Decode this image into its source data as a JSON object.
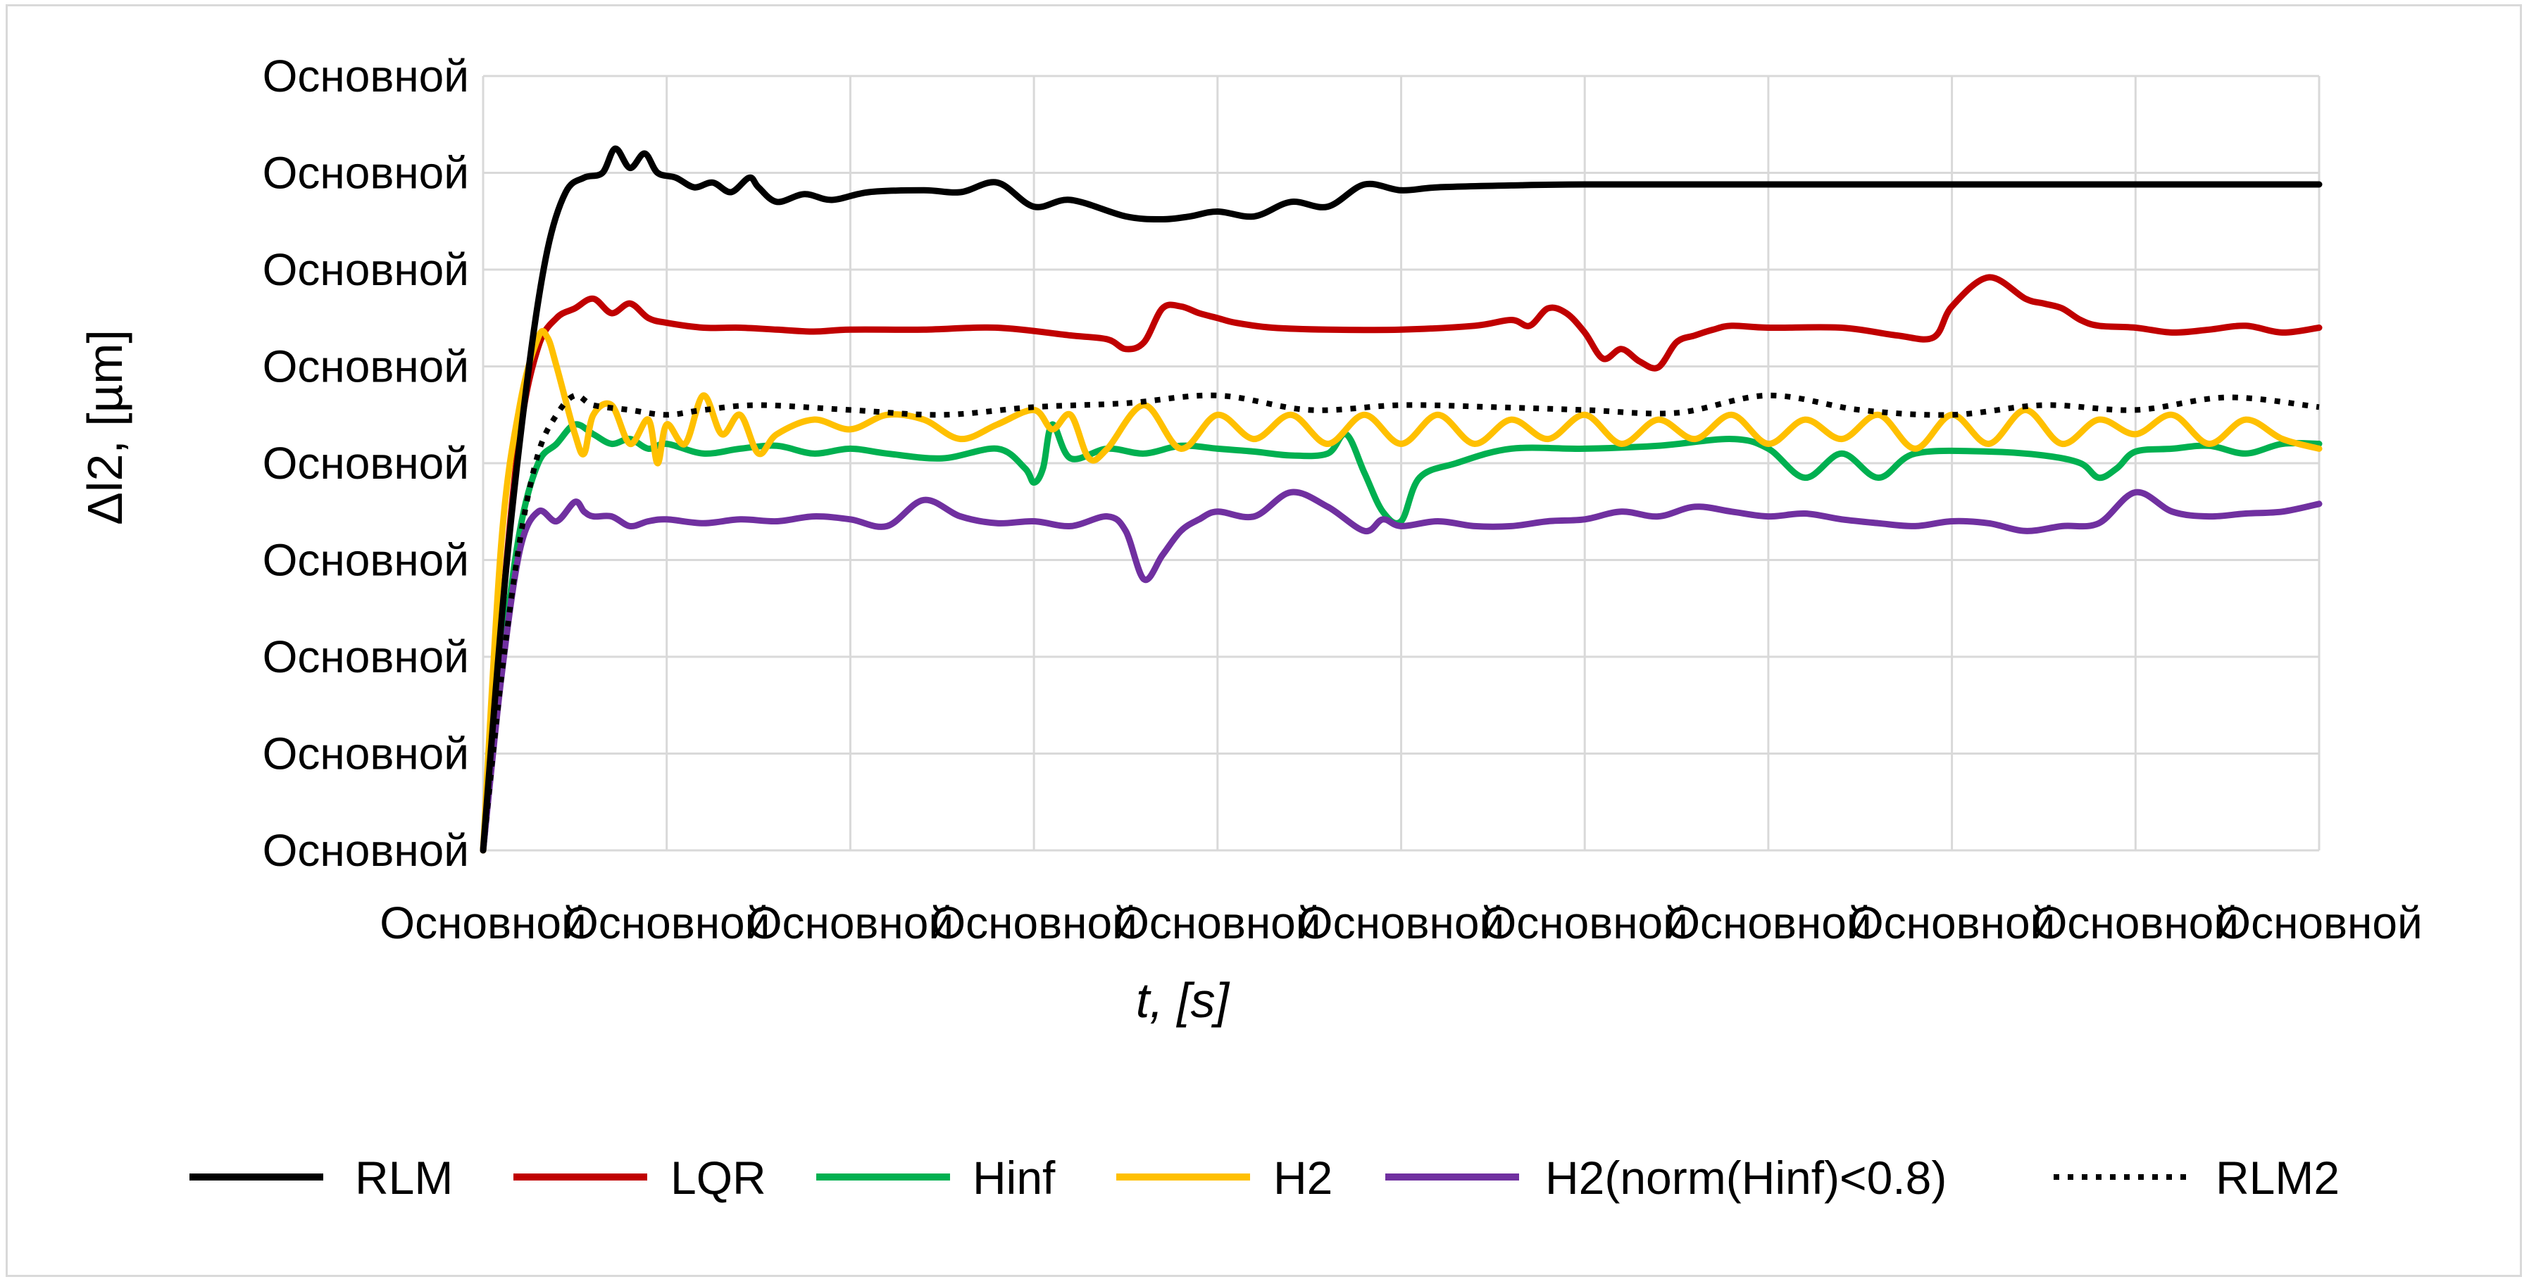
{
  "chart_data": {
    "type": "line",
    "title": "",
    "xlabel": "t, [s]",
    "ylabel": "Δl2, [µm]",
    "x_tick_labels": [
      "Основной",
      "Основной",
      "Основной",
      "Основной",
      "Основной",
      "Основной",
      "Основной",
      "Основной",
      "Основной",
      "Основной",
      "Основной"
    ],
    "y_tick_labels": [
      "Основной",
      "Основной",
      "Основной",
      "Основной",
      "Основной",
      "Основной",
      "Основной",
      "Основной",
      "Основной"
    ],
    "xlim": [
      0,
      10
    ],
    "ylim": [
      0,
      8
    ],
    "grid": true,
    "legend_position": "bottom",
    "series": [
      {
        "name": "RLM",
        "color": "#000000",
        "dash": "solid",
        "x": [
          0,
          0.12,
          0.25,
          0.35,
          0.45,
          0.55,
          0.65,
          0.72,
          0.8,
          0.88,
          0.95,
          1.05,
          1.15,
          1.25,
          1.35,
          1.45,
          1.5,
          1.6,
          1.75,
          1.9,
          2.1,
          2.4,
          2.6,
          2.8,
          3.0,
          3.2,
          3.5,
          3.7,
          3.85,
          4.0,
          4.2,
          4.4,
          4.6,
          4.8,
          5.0,
          5.2,
          5.6,
          6.0,
          7.0,
          8.0,
          9.0,
          10.0
        ],
        "y": [
          0,
          2.8,
          5.0,
          6.2,
          6.8,
          6.95,
          7.0,
          7.25,
          7.05,
          7.2,
          7.0,
          6.95,
          6.85,
          6.9,
          6.8,
          6.95,
          6.85,
          6.7,
          6.78,
          6.72,
          6.8,
          6.82,
          6.8,
          6.9,
          6.65,
          6.72,
          6.55,
          6.52,
          6.55,
          6.6,
          6.55,
          6.7,
          6.65,
          6.88,
          6.82,
          6.85,
          6.87,
          6.88,
          6.88,
          6.88,
          6.88,
          6.88
        ]
      },
      {
        "name": "LQR",
        "color": "#c00000",
        "dash": "solid",
        "x": [
          0,
          0.1,
          0.2,
          0.3,
          0.4,
          0.5,
          0.6,
          0.7,
          0.8,
          0.9,
          1.0,
          1.2,
          1.4,
          1.6,
          1.8,
          2.0,
          2.4,
          2.8,
          3.2,
          3.4,
          3.5,
          3.6,
          3.7,
          3.8,
          3.9,
          4.0,
          4.1,
          4.3,
          4.6,
          5.0,
          5.4,
          5.6,
          5.7,
          5.8,
          5.9,
          6.0,
          6.1,
          6.2,
          6.3,
          6.4,
          6.5,
          6.6,
          6.7,
          6.8,
          7.0,
          7.4,
          7.7,
          7.9,
          8.0,
          8.2,
          8.4,
          8.5,
          8.6,
          8.7,
          8.8,
          9.0,
          9.2,
          9.4,
          9.6,
          9.8,
          10.0
        ],
        "y": [
          0,
          2.4,
          4.3,
          5.2,
          5.5,
          5.6,
          5.7,
          5.55,
          5.65,
          5.5,
          5.45,
          5.4,
          5.4,
          5.38,
          5.36,
          5.38,
          5.38,
          5.4,
          5.32,
          5.28,
          5.18,
          5.25,
          5.6,
          5.62,
          5.55,
          5.5,
          5.45,
          5.4,
          5.38,
          5.38,
          5.42,
          5.48,
          5.42,
          5.6,
          5.55,
          5.35,
          5.08,
          5.18,
          5.05,
          4.99,
          5.25,
          5.32,
          5.38,
          5.42,
          5.4,
          5.4,
          5.32,
          5.3,
          5.62,
          5.92,
          5.7,
          5.65,
          5.6,
          5.48,
          5.42,
          5.4,
          5.35,
          5.38,
          5.42,
          5.35,
          5.4
        ]
      },
      {
        "name": "Hinf",
        "color": "#00b050",
        "dash": "solid",
        "x": [
          0,
          0.1,
          0.2,
          0.3,
          0.4,
          0.5,
          0.6,
          0.7,
          0.8,
          0.9,
          1.0,
          1.2,
          1.4,
          1.6,
          1.8,
          2.0,
          2.2,
          2.5,
          2.8,
          2.95,
          3.0,
          3.05,
          3.1,
          3.2,
          3.4,
          3.6,
          3.8,
          4.0,
          4.2,
          4.4,
          4.6,
          4.7,
          4.8,
          4.9,
          5.0,
          5.1,
          5.3,
          5.6,
          6.0,
          6.4,
          6.8,
          7.0,
          7.2,
          7.4,
          7.6,
          7.8,
          8.2,
          8.5,
          8.7,
          8.8,
          8.9,
          9.0,
          9.2,
          9.4,
          9.6,
          9.8,
          10.0
        ],
        "y": [
          0,
          1.9,
          3.3,
          4.0,
          4.2,
          4.4,
          4.3,
          4.2,
          4.25,
          4.15,
          4.2,
          4.1,
          4.15,
          4.18,
          4.1,
          4.15,
          4.1,
          4.05,
          4.15,
          3.95,
          3.8,
          3.95,
          4.4,
          4.05,
          4.15,
          4.1,
          4.18,
          4.15,
          4.12,
          4.08,
          4.1,
          4.3,
          3.9,
          3.5,
          3.4,
          3.85,
          4.0,
          4.15,
          4.15,
          4.18,
          4.25,
          4.15,
          3.85,
          4.1,
          3.85,
          4.1,
          4.12,
          4.08,
          4.0,
          3.85,
          3.95,
          4.12,
          4.15,
          4.18,
          4.1,
          4.2,
          4.2
        ]
      },
      {
        "name": "H2",
        "color": "#ffc000",
        "dash": "solid",
        "x": [
          0,
          0.1,
          0.2,
          0.3,
          0.35,
          0.4,
          0.5,
          0.55,
          0.6,
          0.7,
          0.8,
          0.9,
          0.95,
          1.0,
          1.1,
          1.2,
          1.3,
          1.4,
          1.5,
          1.6,
          1.8,
          2.0,
          2.2,
          2.4,
          2.6,
          2.8,
          3.0,
          3.1,
          3.2,
          3.3,
          3.4,
          3.6,
          3.8,
          4.0,
          4.2,
          4.4,
          4.6,
          4.8,
          5.0,
          5.2,
          5.4,
          5.6,
          5.8,
          6.0,
          6.2,
          6.4,
          6.6,
          6.8,
          7.0,
          7.2,
          7.4,
          7.6,
          7.8,
          8.0,
          8.2,
          8.4,
          8.6,
          8.8,
          9.0,
          9.2,
          9.4,
          9.6,
          9.8,
          10.0
        ],
        "y": [
          0,
          3.2,
          4.6,
          5.3,
          5.3,
          5.0,
          4.3,
          4.1,
          4.5,
          4.6,
          4.2,
          4.45,
          4.0,
          4.4,
          4.2,
          4.7,
          4.3,
          4.5,
          4.1,
          4.3,
          4.45,
          4.35,
          4.5,
          4.45,
          4.25,
          4.4,
          4.55,
          4.35,
          4.5,
          4.05,
          4.15,
          4.6,
          4.15,
          4.5,
          4.25,
          4.5,
          4.2,
          4.5,
          4.2,
          4.5,
          4.2,
          4.45,
          4.25,
          4.5,
          4.2,
          4.45,
          4.25,
          4.5,
          4.2,
          4.45,
          4.25,
          4.5,
          4.15,
          4.5,
          4.2,
          4.55,
          4.2,
          4.45,
          4.3,
          4.5,
          4.2,
          4.45,
          4.25,
          4.15
        ]
      },
      {
        "name": "H2(norm(Hinf)<0.8)",
        "color": "#7030a0",
        "dash": "solid",
        "x": [
          0,
          0.1,
          0.2,
          0.3,
          0.4,
          0.5,
          0.55,
          0.6,
          0.7,
          0.8,
          0.9,
          1.0,
          1.2,
          1.4,
          1.6,
          1.8,
          2.0,
          2.2,
          2.4,
          2.6,
          2.8,
          3.0,
          3.2,
          3.4,
          3.5,
          3.6,
          3.7,
          3.8,
          3.9,
          4.0,
          4.2,
          4.4,
          4.6,
          4.8,
          4.9,
          5.0,
          5.2,
          5.4,
          5.6,
          5.8,
          6.0,
          6.2,
          6.4,
          6.6,
          6.8,
          7.0,
          7.2,
          7.4,
          7.6,
          7.8,
          8.0,
          8.2,
          8.4,
          8.6,
          8.8,
          9.0,
          9.2,
          9.4,
          9.6,
          9.8,
          10.0
        ],
        "y": [
          0,
          1.8,
          3.1,
          3.5,
          3.4,
          3.6,
          3.5,
          3.45,
          3.45,
          3.35,
          3.4,
          3.42,
          3.38,
          3.42,
          3.4,
          3.45,
          3.42,
          3.35,
          3.62,
          3.45,
          3.38,
          3.4,
          3.35,
          3.45,
          3.3,
          2.8,
          3.05,
          3.3,
          3.42,
          3.5,
          3.45,
          3.7,
          3.55,
          3.3,
          3.42,
          3.35,
          3.4,
          3.35,
          3.35,
          3.4,
          3.42,
          3.5,
          3.45,
          3.55,
          3.5,
          3.45,
          3.48,
          3.42,
          3.38,
          3.35,
          3.4,
          3.38,
          3.3,
          3.35,
          3.38,
          3.7,
          3.5,
          3.45,
          3.48,
          3.5,
          3.58
        ]
      },
      {
        "name": "RLM2",
        "color": "#000000",
        "dash": "dotted",
        "x": [
          0,
          0.1,
          0.2,
          0.3,
          0.4,
          0.5,
          0.6,
          0.8,
          1.0,
          1.2,
          1.5,
          2.0,
          2.5,
          3.0,
          3.5,
          4.0,
          4.5,
          5.0,
          5.5,
          6.0,
          6.5,
          7.0,
          7.5,
          8.0,
          8.5,
          9.0,
          9.5,
          10.0
        ],
        "y": [
          0,
          1.8,
          3.2,
          4.1,
          4.5,
          4.7,
          4.6,
          4.55,
          4.5,
          4.55,
          4.6,
          4.55,
          4.5,
          4.58,
          4.62,
          4.7,
          4.55,
          4.6,
          4.58,
          4.55,
          4.52,
          4.7,
          4.55,
          4.5,
          4.6,
          4.55,
          4.68,
          4.58
        ]
      }
    ]
  }
}
